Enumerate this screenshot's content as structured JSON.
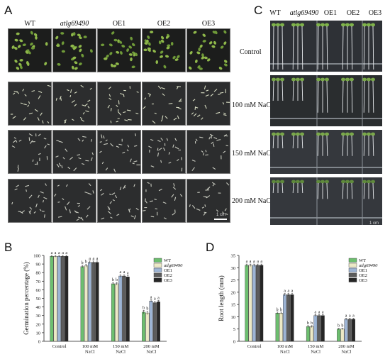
{
  "panels": {
    "a": "A",
    "b": "B",
    "c": "C",
    "d": "D"
  },
  "genotypes": [
    "WT",
    "atlg69490",
    "OE1",
    "OE2",
    "OE3"
  ],
  "conditions": [
    "Control",
    "100 mM NaCl",
    "150 mM NaCl",
    "200 mM NaCl"
  ],
  "panelA": {
    "scale_text": "1 cm"
  },
  "panelC": {
    "scale_text": "1 cm"
  },
  "chart_data": [
    {
      "type": "bar",
      "panel": "B",
      "ylabel": "Germination percentage (%)",
      "ylim": [
        0,
        100
      ],
      "yticks": [
        0,
        10,
        20,
        30,
        40,
        50,
        60,
        70,
        80,
        90,
        100
      ],
      "categories": [
        "Control",
        "100 mM NaCl",
        "150 mM NaCl",
        "200 mM NaCl"
      ],
      "category_lines": [
        [
          "Control"
        ],
        [
          "100 mM",
          "NaCl"
        ],
        [
          "150 mM",
          "NaCl"
        ],
        [
          "200 mM",
          "NaCl"
        ]
      ],
      "series": [
        {
          "name": "WT",
          "color": "#6dbf6f",
          "values": [
            99,
            87,
            67,
            34
          ],
          "err": [
            1,
            1.5,
            1.5,
            2
          ]
        },
        {
          "name": "atlg69490",
          "color": "#ece9c6",
          "values": [
            99,
            88,
            67,
            33
          ],
          "err": [
            1,
            1.5,
            1.5,
            2
          ]
        },
        {
          "name": "OE1",
          "color": "#9db4d4",
          "values": [
            99,
            92,
            76,
            47
          ],
          "err": [
            1,
            1.5,
            1.5,
            1.5
          ]
        },
        {
          "name": "OE2",
          "color": "#5c5c5c",
          "values": [
            99,
            92,
            76,
            45
          ],
          "err": [
            1,
            1.5,
            1.5,
            1.5
          ]
        },
        {
          "name": "OE3",
          "color": "#262626",
          "values": [
            99,
            92,
            75,
            46
          ],
          "err": [
            1,
            1.5,
            1.5,
            1.5
          ]
        }
      ],
      "letters": [
        [
          "a",
          "a",
          "a",
          "a",
          "a"
        ],
        [
          "b",
          "b",
          "a",
          "a",
          "a"
        ],
        [
          "b",
          "b",
          "a",
          "a",
          "a"
        ],
        [
          "b",
          "b",
          "a",
          "a",
          "a"
        ]
      ]
    },
    {
      "type": "bar",
      "panel": "D",
      "ylabel": "Root length (mm)",
      "ylim": [
        0,
        35
      ],
      "yticks": [
        0,
        5,
        10,
        15,
        20,
        25,
        30,
        35
      ],
      "categories": [
        "Control",
        "100 mM NaCl",
        "150 mM NaCl",
        "200 mM NaCl"
      ],
      "category_lines": [
        [
          "Control"
        ],
        [
          "100 mM",
          "NaCl"
        ],
        [
          "150 mM",
          "NaCl"
        ],
        [
          "200 mM",
          "NaCl"
        ]
      ],
      "series": [
        {
          "name": "WT",
          "color": "#6dbf6f",
          "values": [
            31,
            11.5,
            6,
            5
          ],
          "err": [
            0.5,
            0.4,
            0.4,
            0.3
          ]
        },
        {
          "name": "atlg69490",
          "color": "#ece9c6",
          "values": [
            31,
            11.5,
            6,
            5
          ],
          "err": [
            0.5,
            0.4,
            0.4,
            0.3
          ]
        },
        {
          "name": "OE1",
          "color": "#9db4d4",
          "values": [
            31,
            19,
            10.5,
            9
          ],
          "err": [
            0.5,
            0.5,
            0.4,
            0.4
          ]
        },
        {
          "name": "OE2",
          "color": "#5c5c5c",
          "values": [
            31,
            19,
            10.5,
            9
          ],
          "err": [
            0.5,
            0.5,
            0.4,
            0.4
          ]
        },
        {
          "name": "OE3",
          "color": "#262626",
          "values": [
            31,
            19,
            10.5,
            9
          ],
          "err": [
            0.5,
            0.5,
            0.4,
            0.4
          ]
        }
      ],
      "letters": [
        [
          "a",
          "a",
          "a",
          "a",
          "a"
        ],
        [
          "b",
          "b",
          "a",
          "a",
          "a"
        ],
        [
          "b",
          "b",
          "a",
          "a",
          "a"
        ],
        [
          "b",
          "b",
          "a",
          "a",
          "a"
        ]
      ]
    }
  ]
}
